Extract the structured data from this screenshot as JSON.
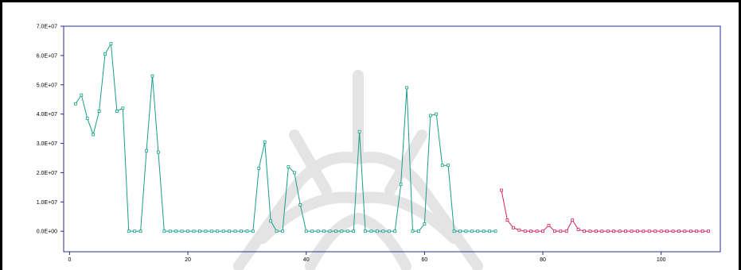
{
  "chart_data": {
    "type": "line",
    "title": "",
    "xlabel": "",
    "ylabel": "",
    "xlim": [
      -1,
      110
    ],
    "ylim": [
      -7000000,
      70000000
    ],
    "x_ticks": [
      0,
      20,
      40,
      60,
      80,
      100
    ],
    "x_tick_labels": [
      "0",
      "20",
      "40",
      "60",
      "80",
      "100"
    ],
    "y_ticks": [
      0,
      10000000,
      20000000,
      30000000,
      40000000,
      50000000,
      60000000,
      70000000
    ],
    "y_tick_labels": [
      "0.0E+00",
      "1.0E+07",
      "2.0E+07",
      "3.0E+07",
      "4.0E+07",
      "5.0E+07",
      "6.0E+07",
      "7.0E+07"
    ],
    "grid": false,
    "legend": "none",
    "series": [
      {
        "color": "#1a9e88",
        "marker": "square",
        "x": [
          1,
          2,
          3,
          4,
          5,
          6,
          7,
          8,
          9,
          10,
          11,
          12,
          13,
          14,
          15,
          16,
          17,
          18,
          19,
          20,
          21,
          22,
          23,
          24,
          25,
          26,
          27,
          28,
          29,
          30,
          31,
          32,
          33,
          34,
          35,
          36,
          37,
          38,
          39,
          40,
          41,
          42,
          43,
          44,
          45,
          46,
          47,
          48,
          49,
          50,
          51,
          52,
          53,
          54,
          55,
          56,
          57,
          58,
          59,
          60,
          61,
          62,
          63,
          64,
          65,
          66,
          67,
          68,
          69,
          70,
          71,
          72
        ],
        "y": [
          43500000,
          46500000,
          38500000,
          33000000,
          41000000,
          60500000,
          64000000,
          41000000,
          42000000,
          0,
          0,
          0,
          27500000,
          53000000,
          27000000,
          0,
          0,
          0,
          0,
          0,
          0,
          0,
          0,
          0,
          0,
          0,
          0,
          0,
          0,
          0,
          0,
          21500000,
          30500000,
          3500000,
          0,
          0,
          22000000,
          20000000,
          9000000,
          0,
          0,
          0,
          0,
          0,
          0,
          0,
          0,
          0,
          34000000,
          0,
          0,
          0,
          0,
          0,
          0,
          16000000,
          49000000,
          0,
          0,
          2500000,
          39500000,
          40000000,
          22500000,
          22500000,
          0,
          0,
          0,
          0,
          0,
          0,
          0,
          0
        ]
      },
      {
        "color": "#d3205a",
        "marker": "square",
        "x": [
          73,
          74,
          75,
          76,
          77,
          78,
          79,
          80,
          81,
          82,
          83,
          84,
          85,
          86,
          87,
          88,
          89,
          90,
          91,
          92,
          93,
          94,
          95,
          96,
          97,
          98,
          99,
          100,
          101,
          102,
          103,
          104,
          105,
          106,
          107,
          108
        ],
        "y": [
          14000000,
          3800000,
          1200000,
          400000,
          0,
          0,
          0,
          0,
          2000000,
          0,
          0,
          0,
          3800000,
          600000,
          0,
          0,
          0,
          0,
          0,
          0,
          0,
          0,
          0,
          0,
          0,
          0,
          0,
          0,
          0,
          0,
          0,
          0,
          0,
          0,
          0,
          0
        ]
      }
    ]
  }
}
